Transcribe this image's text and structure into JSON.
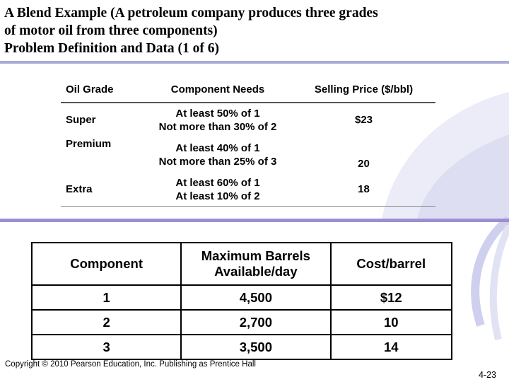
{
  "slide": {
    "title_lines": [
      "A Blend Example (A petroleum company produces three grades",
      "of motor oil from three components)",
      "Problem Definition and Data (1 of 6)"
    ],
    "colors": {
      "rule": "#a9a9d8",
      "swoosh": "#c9c9ec",
      "bottom_rule": "#9b8fd0"
    }
  },
  "grades_table": {
    "headers": [
      "Oil Grade",
      "Component Needs",
      "Selling Price ($/bbl)"
    ],
    "rows": [
      {
        "grade": "Super",
        "needs": [
          "At least 50% of 1",
          "Not more than 30% of 2"
        ],
        "price": "$23"
      },
      {
        "grade": "Premium",
        "needs": [
          "At least 40% of 1",
          "Not more than 25% of 3"
        ],
        "price": "20"
      },
      {
        "grade": "Extra",
        "needs": [
          "At least 60% of 1",
          "At least 10% of 2"
        ],
        "price": "18"
      }
    ]
  },
  "components_table": {
    "headers": [
      [
        "Component"
      ],
      [
        "Maximum Barrels",
        "Available/day"
      ],
      [
        "Cost/barrel"
      ]
    ],
    "rows": [
      {
        "component": "1",
        "max_barrels": "4,500",
        "cost": "$12"
      },
      {
        "component": "2",
        "max_barrels": "2,700",
        "cost": "10"
      },
      {
        "component": "3",
        "max_barrels": "3,500",
        "cost": "14"
      }
    ]
  },
  "footer": {
    "copyright": "Copyright © 2010 Pearson Education, Inc. Publishing as Prentice Hall",
    "page_number": "4-23"
  }
}
